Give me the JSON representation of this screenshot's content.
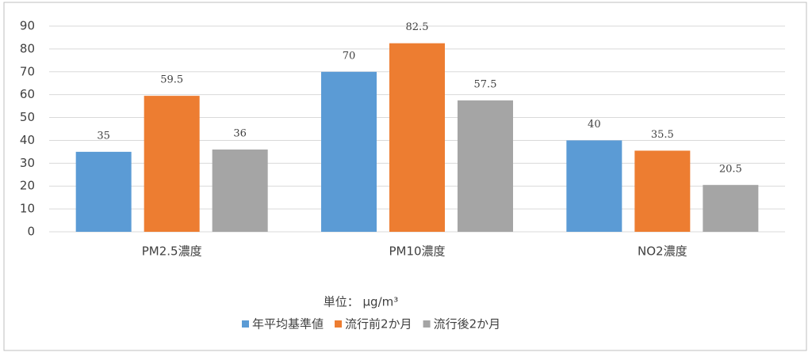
{
  "chart_data": {
    "type": "bar",
    "categories": [
      "PM2.5濃度",
      "PM10濃度",
      "NO2濃度"
    ],
    "series": [
      {
        "name": "年平均基準値",
        "color": "#5b9bd5",
        "values": [
          35,
          70,
          40
        ]
      },
      {
        "name": "流行前2か月",
        "color": "#ed7d31",
        "values": [
          59.5,
          82.5,
          35.5
        ]
      },
      {
        "name": "流行後2か月",
        "color": "#a5a5a5",
        "values": [
          36,
          57.5,
          20.5
        ]
      }
    ],
    "annotation": "単位： μg/m³",
    "ylim": [
      0,
      90
    ],
    "yticks": [
      0,
      10,
      20,
      30,
      40,
      50,
      60,
      70,
      80,
      90
    ],
    "grid": true,
    "legend": "bottom"
  }
}
